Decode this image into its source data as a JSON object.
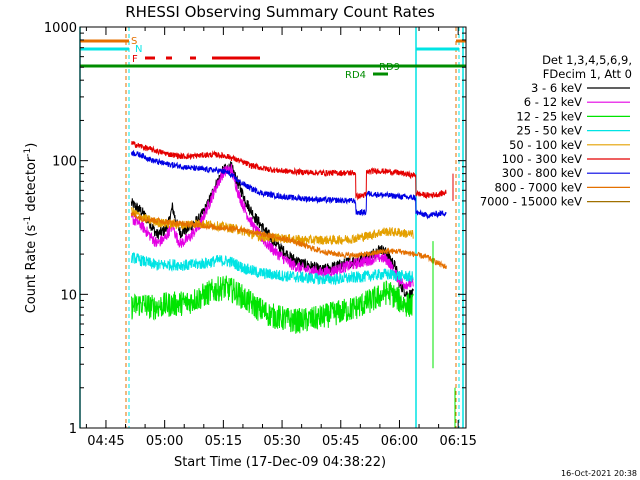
{
  "chart_data": {
    "type": "line",
    "title": "RHESSI Observing Summary Count Rates",
    "xlabel": "Start Time (17-Dec-09 04:38:22)",
    "ylabel_main": "Count Rate (s",
    "ylabel_sup1": "-1",
    "ylabel_mid": " detector",
    "ylabel_sup2": "-1",
    "ylabel_end": ")",
    "yscale": "log",
    "ylim": [
      1,
      1000
    ],
    "xlim_minutes": [
      38.367,
      137.0
    ],
    "x_ticks": [
      {
        "label": "04:45",
        "min": 45
      },
      {
        "label": "05:00",
        "min": 60
      },
      {
        "label": "05:15",
        "min": 75
      },
      {
        "label": "05:30",
        "min": 90
      },
      {
        "label": "05:45",
        "min": 105
      },
      {
        "label": "06:00",
        "min": 120
      },
      {
        "label": "06:15",
        "min": 135
      }
    ],
    "y_ticks": [
      {
        "label": "1",
        "v": 1
      },
      {
        "label": "10",
        "v": 10
      },
      {
        "label": "100",
        "v": 100
      },
      {
        "label": "1000",
        "v": 1000
      }
    ],
    "legend_header": [
      "Det 1,3,4,5,6,9,",
      "FDecim 1, Att 0"
    ],
    "series": [
      {
        "name": "3 - 6 keV",
        "color": "#000000",
        "values": [
          [
            51.5,
            48
          ],
          [
            54,
            42
          ],
          [
            56,
            35
          ],
          [
            58,
            28
          ],
          [
            60,
            30
          ],
          [
            61,
            34
          ],
          [
            62,
            45
          ],
          [
            63,
            34
          ],
          [
            64,
            29
          ],
          [
            66,
            31
          ],
          [
            69,
            37
          ],
          [
            71,
            47
          ],
          [
            73,
            65
          ],
          [
            75,
            85
          ],
          [
            77,
            90
          ],
          [
            79,
            65
          ],
          [
            81,
            48
          ],
          [
            83,
            38
          ],
          [
            86,
            29
          ],
          [
            89,
            23
          ],
          [
            92,
            19
          ],
          [
            95,
            17
          ],
          [
            98,
            16
          ],
          [
            100,
            15
          ],
          [
            103,
            16
          ],
          [
            106,
            17
          ],
          [
            109,
            18
          ],
          [
            112,
            19
          ],
          [
            115,
            22
          ],
          [
            117,
            20
          ],
          [
            119,
            16
          ],
          [
            120,
            12
          ],
          [
            121,
            11
          ],
          [
            122,
            10
          ],
          [
            123.5,
            10
          ]
        ]
      },
      {
        "name": "6 - 12 keV",
        "color": "#e400e4",
        "values": [
          [
            51.5,
            37
          ],
          [
            54,
            33
          ],
          [
            56,
            28
          ],
          [
            58,
            24
          ],
          [
            60,
            26
          ],
          [
            62,
            33
          ],
          [
            63,
            27
          ],
          [
            64,
            24
          ],
          [
            66,
            26
          ],
          [
            69,
            33
          ],
          [
            71,
            45
          ],
          [
            73,
            62
          ],
          [
            75,
            82
          ],
          [
            77,
            87
          ],
          [
            79,
            55
          ],
          [
            81,
            40
          ],
          [
            83,
            31
          ],
          [
            86,
            24
          ],
          [
            89,
            20
          ],
          [
            92,
            17
          ],
          [
            95,
            15.5
          ],
          [
            98,
            15
          ],
          [
            100,
            14.5
          ],
          [
            103,
            15
          ],
          [
            106,
            16
          ],
          [
            109,
            17
          ],
          [
            112,
            18
          ],
          [
            115,
            19
          ],
          [
            117,
            18
          ],
          [
            119,
            14
          ],
          [
            121,
            12
          ],
          [
            123.5,
            12
          ]
        ]
      },
      {
        "name": "12 - 25 keV",
        "color": "#00e400",
        "values": [
          [
            51.5,
            8
          ],
          [
            54,
            8.5
          ],
          [
            57,
            8
          ],
          [
            60,
            8.3
          ],
          [
            63,
            8.5
          ],
          [
            66,
            8.7
          ],
          [
            69,
            9.5
          ],
          [
            72,
            10.5
          ],
          [
            75,
            11.3
          ],
          [
            78,
            10.5
          ],
          [
            81,
            9
          ],
          [
            84,
            7.8
          ],
          [
            87,
            7
          ],
          [
            90,
            6.6
          ],
          [
            93,
            6.3
          ],
          [
            96,
            6.4
          ],
          [
            99,
            6.6
          ],
          [
            102,
            7
          ],
          [
            105,
            7.4
          ],
          [
            108,
            7.8
          ],
          [
            111,
            8.5
          ],
          [
            114,
            9.3
          ],
          [
            117,
            10.5
          ],
          [
            119,
            9.5
          ],
          [
            121,
            8.5
          ],
          [
            123.5,
            8.2
          ]
        ]
      },
      {
        "name": "25 - 50 keV",
        "color": "#00e4e4",
        "values": [
          [
            51.5,
            19
          ],
          [
            55,
            17.5
          ],
          [
            58,
            16.5
          ],
          [
            62,
            16.7
          ],
          [
            66,
            16.5
          ],
          [
            70,
            17
          ],
          [
            74,
            18
          ],
          [
            77,
            17.5
          ],
          [
            80,
            15.8
          ],
          [
            84,
            14.5
          ],
          [
            88,
            14
          ],
          [
            92,
            13.6
          ],
          [
            96,
            13.3
          ],
          [
            100,
            13
          ],
          [
            104,
            13
          ],
          [
            108,
            13.3
          ],
          [
            112,
            13.7
          ],
          [
            116,
            14.2
          ],
          [
            120,
            13.8
          ],
          [
            123.5,
            13.5
          ]
        ]
      },
      {
        "name": "50 - 100 keV",
        "color": "#e4a000",
        "values": [
          [
            51.5,
            42
          ],
          [
            54,
            38
          ],
          [
            57,
            35
          ],
          [
            60,
            34
          ],
          [
            64,
            33
          ],
          [
            68,
            34
          ],
          [
            72,
            33
          ],
          [
            75,
            32
          ],
          [
            78,
            31
          ],
          [
            81,
            29
          ],
          [
            84,
            27
          ],
          [
            88,
            26.5
          ],
          [
            92,
            26
          ],
          [
            96,
            25.5
          ],
          [
            100,
            25.5
          ],
          [
            104,
            25.5
          ],
          [
            108,
            26
          ],
          [
            112,
            27.5
          ],
          [
            116,
            29.5
          ],
          [
            120,
            29
          ],
          [
            123.5,
            28
          ]
        ]
      },
      {
        "name": "100 - 300 keV",
        "color": "#e40000",
        "values": [
          [
            51.5,
            135
          ],
          [
            55,
            125
          ],
          [
            58,
            118
          ],
          [
            61,
            112
          ],
          [
            64,
            108
          ],
          [
            67,
            108
          ],
          [
            70,
            110
          ],
          [
            73,
            111
          ],
          [
            76,
            108
          ],
          [
            79,
            100
          ],
          [
            82,
            92
          ],
          [
            85,
            88
          ],
          [
            88,
            85
          ],
          [
            92,
            83
          ],
          [
            96,
            82
          ],
          [
            100,
            81
          ],
          [
            104,
            81
          ],
          [
            108,
            81
          ],
          [
            108.8,
            81
          ],
          [
            108.8,
            54
          ],
          [
            111,
            55
          ],
          [
            111.5,
            55
          ],
          [
            111.5,
            82
          ],
          [
            114,
            84
          ],
          [
            117,
            83
          ],
          [
            120,
            81
          ],
          [
            123,
            78
          ],
          [
            124.2,
            78
          ],
          [
            124.2,
            57
          ],
          [
            127,
            55
          ],
          [
            130,
            56
          ],
          [
            132,
            58
          ]
        ]
      },
      {
        "name": "300 - 800 keV",
        "color": "#0000e4",
        "values": [
          [
            51.5,
            115
          ],
          [
            54,
            110
          ],
          [
            57,
            100
          ],
          [
            60,
            95
          ],
          [
            64,
            91
          ],
          [
            67,
            88
          ],
          [
            70,
            86
          ],
          [
            73,
            85
          ],
          [
            76,
            82
          ],
          [
            79,
            70
          ],
          [
            82,
            62
          ],
          [
            85,
            57
          ],
          [
            88,
            55
          ],
          [
            92,
            53
          ],
          [
            96,
            52
          ],
          [
            100,
            51
          ],
          [
            104,
            50.5
          ],
          [
            108,
            50
          ],
          [
            108.8,
            50
          ],
          [
            108.8,
            41
          ],
          [
            111.5,
            41
          ],
          [
            111.5,
            57
          ],
          [
            114,
            56
          ],
          [
            117,
            55
          ],
          [
            120,
            54
          ],
          [
            123,
            53
          ],
          [
            124.2,
            53
          ],
          [
            124.2,
            41
          ],
          [
            127,
            39
          ],
          [
            130,
            40
          ],
          [
            132,
            41
          ]
        ]
      },
      {
        "name": "800 - 7000 keV",
        "color": "#e47000",
        "values": [
          [
            51.5,
            40
          ],
          [
            54,
            37
          ],
          [
            57,
            36
          ],
          [
            60,
            35
          ],
          [
            63,
            34
          ],
          [
            66,
            33.5
          ],
          [
            69,
            33
          ],
          [
            72,
            32
          ],
          [
            75,
            31.5
          ],
          [
            78,
            31
          ],
          [
            81,
            30
          ],
          [
            84,
            28.5
          ],
          [
            88,
            27
          ],
          [
            92,
            25.5
          ],
          [
            96,
            23
          ],
          [
            100,
            21
          ],
          [
            104,
            20
          ],
          [
            108,
            19.5
          ],
          [
            112,
            20
          ],
          [
            116,
            21
          ],
          [
            120,
            21
          ],
          [
            123.5,
            20
          ],
          [
            127,
            19
          ],
          [
            130,
            17
          ],
          [
            132,
            16
          ]
        ]
      },
      {
        "name": "7000 - 15000 keV",
        "color": "#a07000",
        "values": [
          [
            51.5,
            0
          ],
          [
            51.5,
            0
          ]
        ]
      }
    ],
    "annotations": {
      "flags": [
        {
          "label": "S",
          "color": "#e47000"
        },
        {
          "label": "N",
          "color": "#00e4e4"
        },
        {
          "label": "F",
          "color": "#e40000"
        },
        {
          "label": "RD9",
          "color": "#008c00"
        },
        {
          "label": "RD4",
          "color": "#008c00"
        }
      ]
    }
  },
  "footer_timestamp": "16-Oct-2021 20:38"
}
